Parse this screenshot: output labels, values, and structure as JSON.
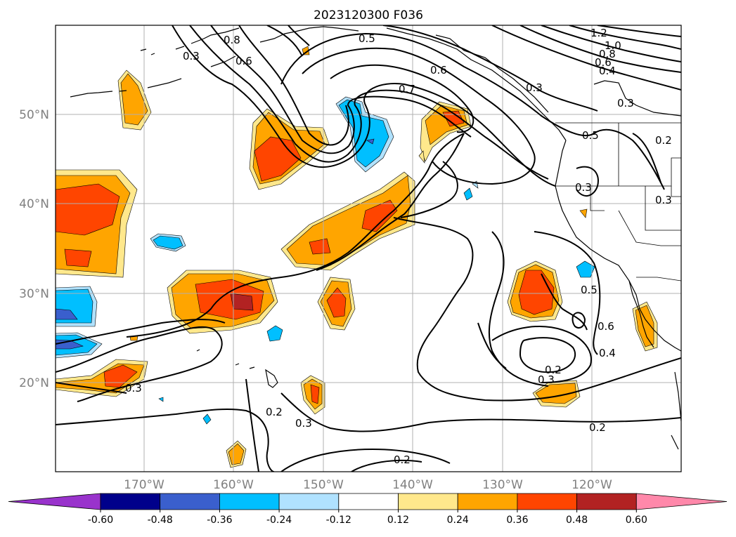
{
  "title": "2023120300 F036",
  "map": {
    "lat_ticks": [
      "20°N",
      "30°N",
      "40°N",
      "50°N"
    ],
    "lon_ticks": [
      "170°W",
      "160°W",
      "150°W",
      "140°W",
      "130°W",
      "120°W"
    ],
    "tick_color": "#808080",
    "grid_color": "#b0b0b0",
    "contour_color": "#000000",
    "contour_labels": [
      "0.8",
      "0.6",
      "0.3",
      "0.5",
      "0.6",
      "0.7",
      "1.2",
      "1.0",
      "0.8",
      "0.6",
      "0.4",
      "0.3",
      "0.3",
      "0.2",
      "0.5",
      "0.3",
      "0.3",
      "0.5",
      "0.6",
      "0.4",
      "0.2",
      "0.3",
      "0.3",
      "0.2",
      "0.3",
      "0.2",
      "0.2"
    ]
  },
  "colorbar": {
    "ticks": [
      "-0.60",
      "-0.48",
      "-0.36",
      "-0.24",
      "-0.12",
      "0.12",
      "0.24",
      "0.36",
      "0.48",
      "0.60"
    ],
    "colors": [
      "#9933cc",
      "#00008b",
      "#3a5fcd",
      "#00bfff",
      "#b0e2ff",
      "#ffffff",
      "#ffe88c",
      "#ffa500",
      "#ff4500",
      "#b22222",
      "#ff88aa"
    ]
  }
}
